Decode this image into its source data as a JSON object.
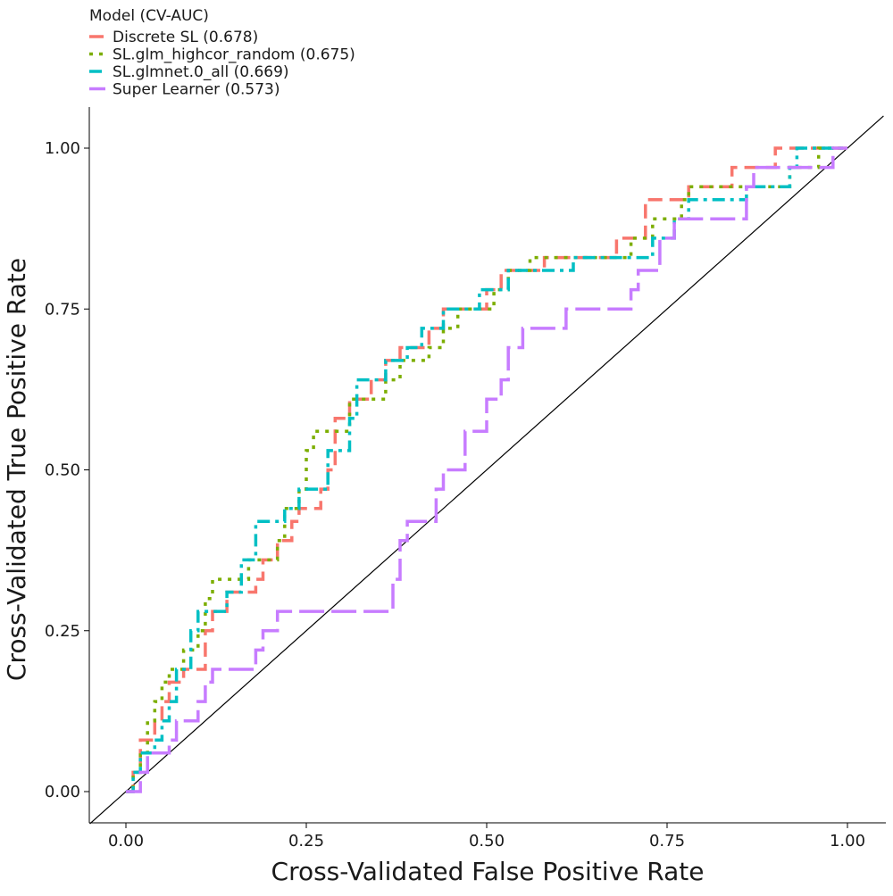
{
  "chart_data": {
    "type": "line",
    "xlabel": "Cross-Validated False Positive Rate",
    "ylabel": "Cross-Validated True Positive Rate",
    "xlim": [
      0,
      1
    ],
    "ylim": [
      0,
      1
    ],
    "x_ticks": [
      "0.00",
      "0.25",
      "0.50",
      "0.75",
      "1.00"
    ],
    "y_ticks": [
      "0.00",
      "0.25",
      "0.50",
      "0.75",
      "1.00"
    ],
    "x_tick_values": [
      0,
      0.25,
      0.5,
      0.75,
      1
    ],
    "y_tick_values": [
      0,
      0.25,
      0.5,
      0.75,
      1
    ],
    "grid": false,
    "legend_position": "top-left",
    "legend_title": "Model (CV-AUC)",
    "reference_line": {
      "x": [
        0,
        1
      ],
      "y": [
        0,
        1
      ],
      "color": "#000000"
    },
    "series": [
      {
        "name": "Discrete SL (0.678)",
        "color": "#F8766D",
        "dash": "dashed",
        "points": [
          [
            0,
            0
          ],
          [
            0.01,
            0
          ],
          [
            0.01,
            0.03
          ],
          [
            0.02,
            0.03
          ],
          [
            0.02,
            0.08
          ],
          [
            0.04,
            0.08
          ],
          [
            0.04,
            0.11
          ],
          [
            0.05,
            0.11
          ],
          [
            0.05,
            0.14
          ],
          [
            0.06,
            0.14
          ],
          [
            0.06,
            0.17
          ],
          [
            0.08,
            0.17
          ],
          [
            0.08,
            0.19
          ],
          [
            0.11,
            0.19
          ],
          [
            0.11,
            0.25
          ],
          [
            0.12,
            0.25
          ],
          [
            0.12,
            0.28
          ],
          [
            0.14,
            0.28
          ],
          [
            0.14,
            0.31
          ],
          [
            0.18,
            0.31
          ],
          [
            0.18,
            0.33
          ],
          [
            0.19,
            0.33
          ],
          [
            0.19,
            0.36
          ],
          [
            0.21,
            0.36
          ],
          [
            0.21,
            0.39
          ],
          [
            0.23,
            0.39
          ],
          [
            0.23,
            0.42
          ],
          [
            0.24,
            0.42
          ],
          [
            0.24,
            0.44
          ],
          [
            0.27,
            0.44
          ],
          [
            0.27,
            0.47
          ],
          [
            0.28,
            0.47
          ],
          [
            0.28,
            0.5
          ],
          [
            0.29,
            0.5
          ],
          [
            0.29,
            0.58
          ],
          [
            0.31,
            0.58
          ],
          [
            0.31,
            0.61
          ],
          [
            0.34,
            0.61
          ],
          [
            0.34,
            0.64
          ],
          [
            0.36,
            0.64
          ],
          [
            0.36,
            0.67
          ],
          [
            0.38,
            0.67
          ],
          [
            0.38,
            0.69
          ],
          [
            0.42,
            0.69
          ],
          [
            0.42,
            0.72
          ],
          [
            0.44,
            0.72
          ],
          [
            0.44,
            0.75
          ],
          [
            0.5,
            0.75
          ],
          [
            0.5,
            0.78
          ],
          [
            0.52,
            0.78
          ],
          [
            0.52,
            0.81
          ],
          [
            0.58,
            0.81
          ],
          [
            0.58,
            0.83
          ],
          [
            0.68,
            0.83
          ],
          [
            0.68,
            0.86
          ],
          [
            0.72,
            0.86
          ],
          [
            0.72,
            0.92
          ],
          [
            0.78,
            0.92
          ],
          [
            0.78,
            0.94
          ],
          [
            0.84,
            0.94
          ],
          [
            0.84,
            0.97
          ],
          [
            0.9,
            0.97
          ],
          [
            0.9,
            1
          ],
          [
            1,
            1
          ]
        ]
      },
      {
        "name": "SL.glm_highcor_random (0.675)",
        "color": "#7CAE00",
        "dash": "dotted",
        "points": [
          [
            0,
            0
          ],
          [
            0.01,
            0
          ],
          [
            0.01,
            0.03
          ],
          [
            0.02,
            0.03
          ],
          [
            0.02,
            0.06
          ],
          [
            0.03,
            0.06
          ],
          [
            0.03,
            0.11
          ],
          [
            0.04,
            0.11
          ],
          [
            0.04,
            0.14
          ],
          [
            0.05,
            0.14
          ],
          [
            0.05,
            0.17
          ],
          [
            0.06,
            0.17
          ],
          [
            0.06,
            0.19
          ],
          [
            0.08,
            0.19
          ],
          [
            0.08,
            0.22
          ],
          [
            0.1,
            0.22
          ],
          [
            0.1,
            0.25
          ],
          [
            0.11,
            0.25
          ],
          [
            0.11,
            0.3
          ],
          [
            0.12,
            0.3
          ],
          [
            0.12,
            0.33
          ],
          [
            0.17,
            0.33
          ],
          [
            0.17,
            0.36
          ],
          [
            0.21,
            0.36
          ],
          [
            0.21,
            0.39
          ],
          [
            0.22,
            0.39
          ],
          [
            0.22,
            0.44
          ],
          [
            0.24,
            0.44
          ],
          [
            0.24,
            0.47
          ],
          [
            0.25,
            0.47
          ],
          [
            0.25,
            0.53
          ],
          [
            0.26,
            0.53
          ],
          [
            0.26,
            0.56
          ],
          [
            0.31,
            0.56
          ],
          [
            0.31,
            0.61
          ],
          [
            0.36,
            0.61
          ],
          [
            0.36,
            0.64
          ],
          [
            0.38,
            0.64
          ],
          [
            0.38,
            0.67
          ],
          [
            0.42,
            0.67
          ],
          [
            0.42,
            0.69
          ],
          [
            0.44,
            0.69
          ],
          [
            0.44,
            0.72
          ],
          [
            0.46,
            0.72
          ],
          [
            0.46,
            0.75
          ],
          [
            0.51,
            0.75
          ],
          [
            0.51,
            0.78
          ],
          [
            0.53,
            0.78
          ],
          [
            0.53,
            0.81
          ],
          [
            0.56,
            0.81
          ],
          [
            0.56,
            0.83
          ],
          [
            0.7,
            0.83
          ],
          [
            0.7,
            0.86
          ],
          [
            0.73,
            0.86
          ],
          [
            0.73,
            0.89
          ],
          [
            0.77,
            0.89
          ],
          [
            0.77,
            0.92
          ],
          [
            0.78,
            0.92
          ],
          [
            0.78,
            0.94
          ],
          [
            0.92,
            0.94
          ],
          [
            0.92,
            0.97
          ],
          [
            0.96,
            0.97
          ],
          [
            0.96,
            1
          ],
          [
            1,
            1
          ]
        ]
      },
      {
        "name": "SL.glmnet.0_all (0.669)",
        "color": "#00BFC4",
        "dash": "dashdot",
        "points": [
          [
            0,
            0
          ],
          [
            0.01,
            0
          ],
          [
            0.01,
            0.03
          ],
          [
            0.02,
            0.03
          ],
          [
            0.02,
            0.06
          ],
          [
            0.04,
            0.06
          ],
          [
            0.04,
            0.08
          ],
          [
            0.05,
            0.08
          ],
          [
            0.05,
            0.11
          ],
          [
            0.06,
            0.11
          ],
          [
            0.06,
            0.14
          ],
          [
            0.07,
            0.14
          ],
          [
            0.07,
            0.19
          ],
          [
            0.09,
            0.19
          ],
          [
            0.09,
            0.25
          ],
          [
            0.1,
            0.25
          ],
          [
            0.1,
            0.28
          ],
          [
            0.14,
            0.28
          ],
          [
            0.14,
            0.31
          ],
          [
            0.16,
            0.31
          ],
          [
            0.16,
            0.36
          ],
          [
            0.18,
            0.36
          ],
          [
            0.18,
            0.42
          ],
          [
            0.22,
            0.42
          ],
          [
            0.22,
            0.44
          ],
          [
            0.24,
            0.44
          ],
          [
            0.24,
            0.47
          ],
          [
            0.28,
            0.47
          ],
          [
            0.28,
            0.53
          ],
          [
            0.31,
            0.53
          ],
          [
            0.31,
            0.58
          ],
          [
            0.32,
            0.58
          ],
          [
            0.32,
            0.64
          ],
          [
            0.36,
            0.64
          ],
          [
            0.36,
            0.67
          ],
          [
            0.39,
            0.67
          ],
          [
            0.39,
            0.69
          ],
          [
            0.41,
            0.69
          ],
          [
            0.41,
            0.72
          ],
          [
            0.44,
            0.72
          ],
          [
            0.44,
            0.75
          ],
          [
            0.49,
            0.75
          ],
          [
            0.49,
            0.78
          ],
          [
            0.53,
            0.78
          ],
          [
            0.53,
            0.81
          ],
          [
            0.62,
            0.81
          ],
          [
            0.62,
            0.83
          ],
          [
            0.73,
            0.83
          ],
          [
            0.73,
            0.86
          ],
          [
            0.76,
            0.86
          ],
          [
            0.76,
            0.89
          ],
          [
            0.78,
            0.89
          ],
          [
            0.78,
            0.92
          ],
          [
            0.86,
            0.92
          ],
          [
            0.86,
            0.94
          ],
          [
            0.92,
            0.94
          ],
          [
            0.92,
            0.97
          ],
          [
            0.93,
            0.97
          ],
          [
            0.93,
            1
          ],
          [
            1,
            1
          ]
        ]
      },
      {
        "name": "Super Learner (0.573)",
        "color": "#C77CFF",
        "dash": "longdash",
        "points": [
          [
            0,
            0
          ],
          [
            0.02,
            0
          ],
          [
            0.02,
            0.03
          ],
          [
            0.03,
            0.03
          ],
          [
            0.03,
            0.06
          ],
          [
            0.06,
            0.06
          ],
          [
            0.06,
            0.08
          ],
          [
            0.07,
            0.08
          ],
          [
            0.07,
            0.11
          ],
          [
            0.1,
            0.11
          ],
          [
            0.1,
            0.14
          ],
          [
            0.11,
            0.14
          ],
          [
            0.11,
            0.17
          ],
          [
            0.12,
            0.17
          ],
          [
            0.12,
            0.19
          ],
          [
            0.18,
            0.19
          ],
          [
            0.18,
            0.22
          ],
          [
            0.19,
            0.22
          ],
          [
            0.19,
            0.25
          ],
          [
            0.21,
            0.25
          ],
          [
            0.21,
            0.28
          ],
          [
            0.37,
            0.28
          ],
          [
            0.37,
            0.33
          ],
          [
            0.38,
            0.33
          ],
          [
            0.38,
            0.39
          ],
          [
            0.39,
            0.39
          ],
          [
            0.39,
            0.42
          ],
          [
            0.43,
            0.42
          ],
          [
            0.43,
            0.47
          ],
          [
            0.44,
            0.47
          ],
          [
            0.44,
            0.5
          ],
          [
            0.47,
            0.5
          ],
          [
            0.47,
            0.56
          ],
          [
            0.5,
            0.56
          ],
          [
            0.5,
            0.61
          ],
          [
            0.52,
            0.61
          ],
          [
            0.52,
            0.64
          ],
          [
            0.53,
            0.64
          ],
          [
            0.53,
            0.69
          ],
          [
            0.55,
            0.69
          ],
          [
            0.55,
            0.72
          ],
          [
            0.61,
            0.72
          ],
          [
            0.61,
            0.75
          ],
          [
            0.7,
            0.75
          ],
          [
            0.7,
            0.78
          ],
          [
            0.71,
            0.78
          ],
          [
            0.71,
            0.81
          ],
          [
            0.74,
            0.81
          ],
          [
            0.74,
            0.86
          ],
          [
            0.76,
            0.86
          ],
          [
            0.76,
            0.89
          ],
          [
            0.86,
            0.89
          ],
          [
            0.86,
            0.94
          ],
          [
            0.87,
            0.94
          ],
          [
            0.87,
            0.97
          ],
          [
            0.98,
            0.97
          ],
          [
            0.98,
            1
          ],
          [
            1,
            1
          ]
        ]
      }
    ]
  }
}
